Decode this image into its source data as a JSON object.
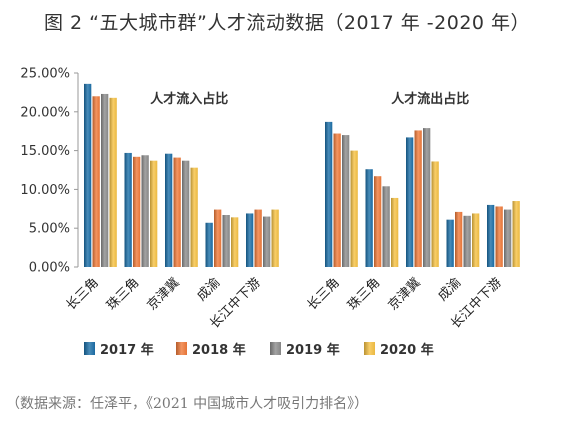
{
  "page": {
    "title": "图 2 “五大城市群”人才流动数据（2017 年 -2020 年）",
    "source": "（数据来源：任泽平，《2021 中国城市人才吸引力排名》）"
  },
  "chart_data": {
    "type": "bar",
    "title": "图 2 “五大城市群”人才流动数据（2017 年 -2020 年）",
    "ylim": [
      0,
      25
    ],
    "yticks": [
      "0.00%",
      "5.00%",
      "10.00%",
      "15.00%",
      "20.00%",
      "25.00%"
    ],
    "grid": false,
    "legend_position": "bottom",
    "groups": [
      {
        "label": "人才流入占比",
        "categories": [
          "长三角",
          "珠三角",
          "京津冀",
          "成渝",
          "长江中下游"
        ]
      },
      {
        "label": "人才流出占比",
        "categories": [
          "长三角",
          "珠三角",
          "京津冀",
          "成渝",
          "长江中下游"
        ]
      }
    ],
    "series": [
      {
        "name": "2017 年",
        "color": "#1b6fa8",
        "values": [
          [
            23.6,
            14.7,
            14.6,
            5.7,
            6.9
          ],
          [
            18.7,
            12.6,
            16.7,
            6.1,
            8.0
          ]
        ]
      },
      {
        "name": "2018 年",
        "color": "#f07a3a",
        "values": [
          [
            22.0,
            14.2,
            14.1,
            7.4,
            7.4
          ],
          [
            17.2,
            11.7,
            17.6,
            7.1,
            7.8
          ]
        ]
      },
      {
        "name": "2019 年",
        "color": "#8c8c8c",
        "values": [
          [
            22.3,
            14.4,
            13.7,
            6.7,
            6.5
          ],
          [
            17.0,
            10.4,
            17.9,
            6.6,
            7.4
          ]
        ]
      },
      {
        "name": "2020 年",
        "color": "#f6c244",
        "values": [
          [
            21.8,
            13.7,
            12.8,
            6.4,
            7.4
          ],
          [
            15.0,
            8.9,
            13.6,
            6.9,
            8.5
          ]
        ]
      }
    ]
  }
}
